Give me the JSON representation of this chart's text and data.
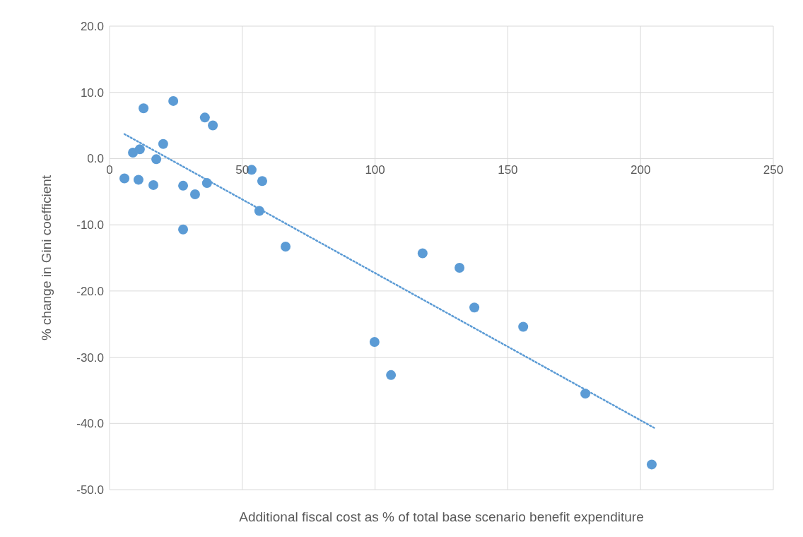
{
  "chart_data": {
    "type": "scatter",
    "xlabel": "Additional fiscal cost as % of total base scenario benefit expenditure",
    "ylabel": "% change in Gini coefficient",
    "xlim": [
      0,
      250
    ],
    "xticks": [
      0,
      50,
      100,
      150,
      200,
      250
    ],
    "ylim": [
      -50,
      20
    ],
    "yticks": [
      {
        "value": -50,
        "label": "-50.0"
      },
      {
        "value": -40,
        "label": "-40.0"
      },
      {
        "value": -30,
        "label": "-30.0"
      },
      {
        "value": -20,
        "label": "-20.0"
      },
      {
        "value": -10,
        "label": "-10.0"
      },
      {
        "value": 0,
        "label": "0.0"
      },
      {
        "value": 10,
        "label": "10.0"
      },
      {
        "value": 20,
        "label": "20.0"
      }
    ],
    "grid": true,
    "marker": "circle",
    "series": [
      {
        "color": "#5b9bd5",
        "x": [
          5.6,
          8.8,
          10.9,
          11.4,
          12.8,
          16.5,
          17.6,
          20.2,
          24.0,
          27.7,
          27.7,
          32.2,
          35.9,
          36.7,
          38.9,
          53.5,
          56.4,
          57.5,
          66.3,
          99.8,
          106.0,
          117.9,
          131.8,
          137.4,
          155.8,
          179.2,
          204.2
        ],
        "values": [
          -3.0,
          0.9,
          -3.2,
          1.4,
          7.6,
          -4.0,
          -0.1,
          2.2,
          8.7,
          -4.1,
          -10.7,
          -5.4,
          6.2,
          -3.7,
          5.0,
          -1.7,
          -7.9,
          -3.4,
          -13.3,
          -27.7,
          -32.7,
          -14.3,
          -16.5,
          -22.5,
          -25.4,
          -35.5,
          -46.2
        ]
      },
      {
        "type": "line",
        "color": "#5b9bd5",
        "line_style": "dotted",
        "marker": "none",
        "x": [
          5.6,
          205.3
        ],
        "values": [
          3.7,
          -40.7
        ]
      }
    ]
  }
}
